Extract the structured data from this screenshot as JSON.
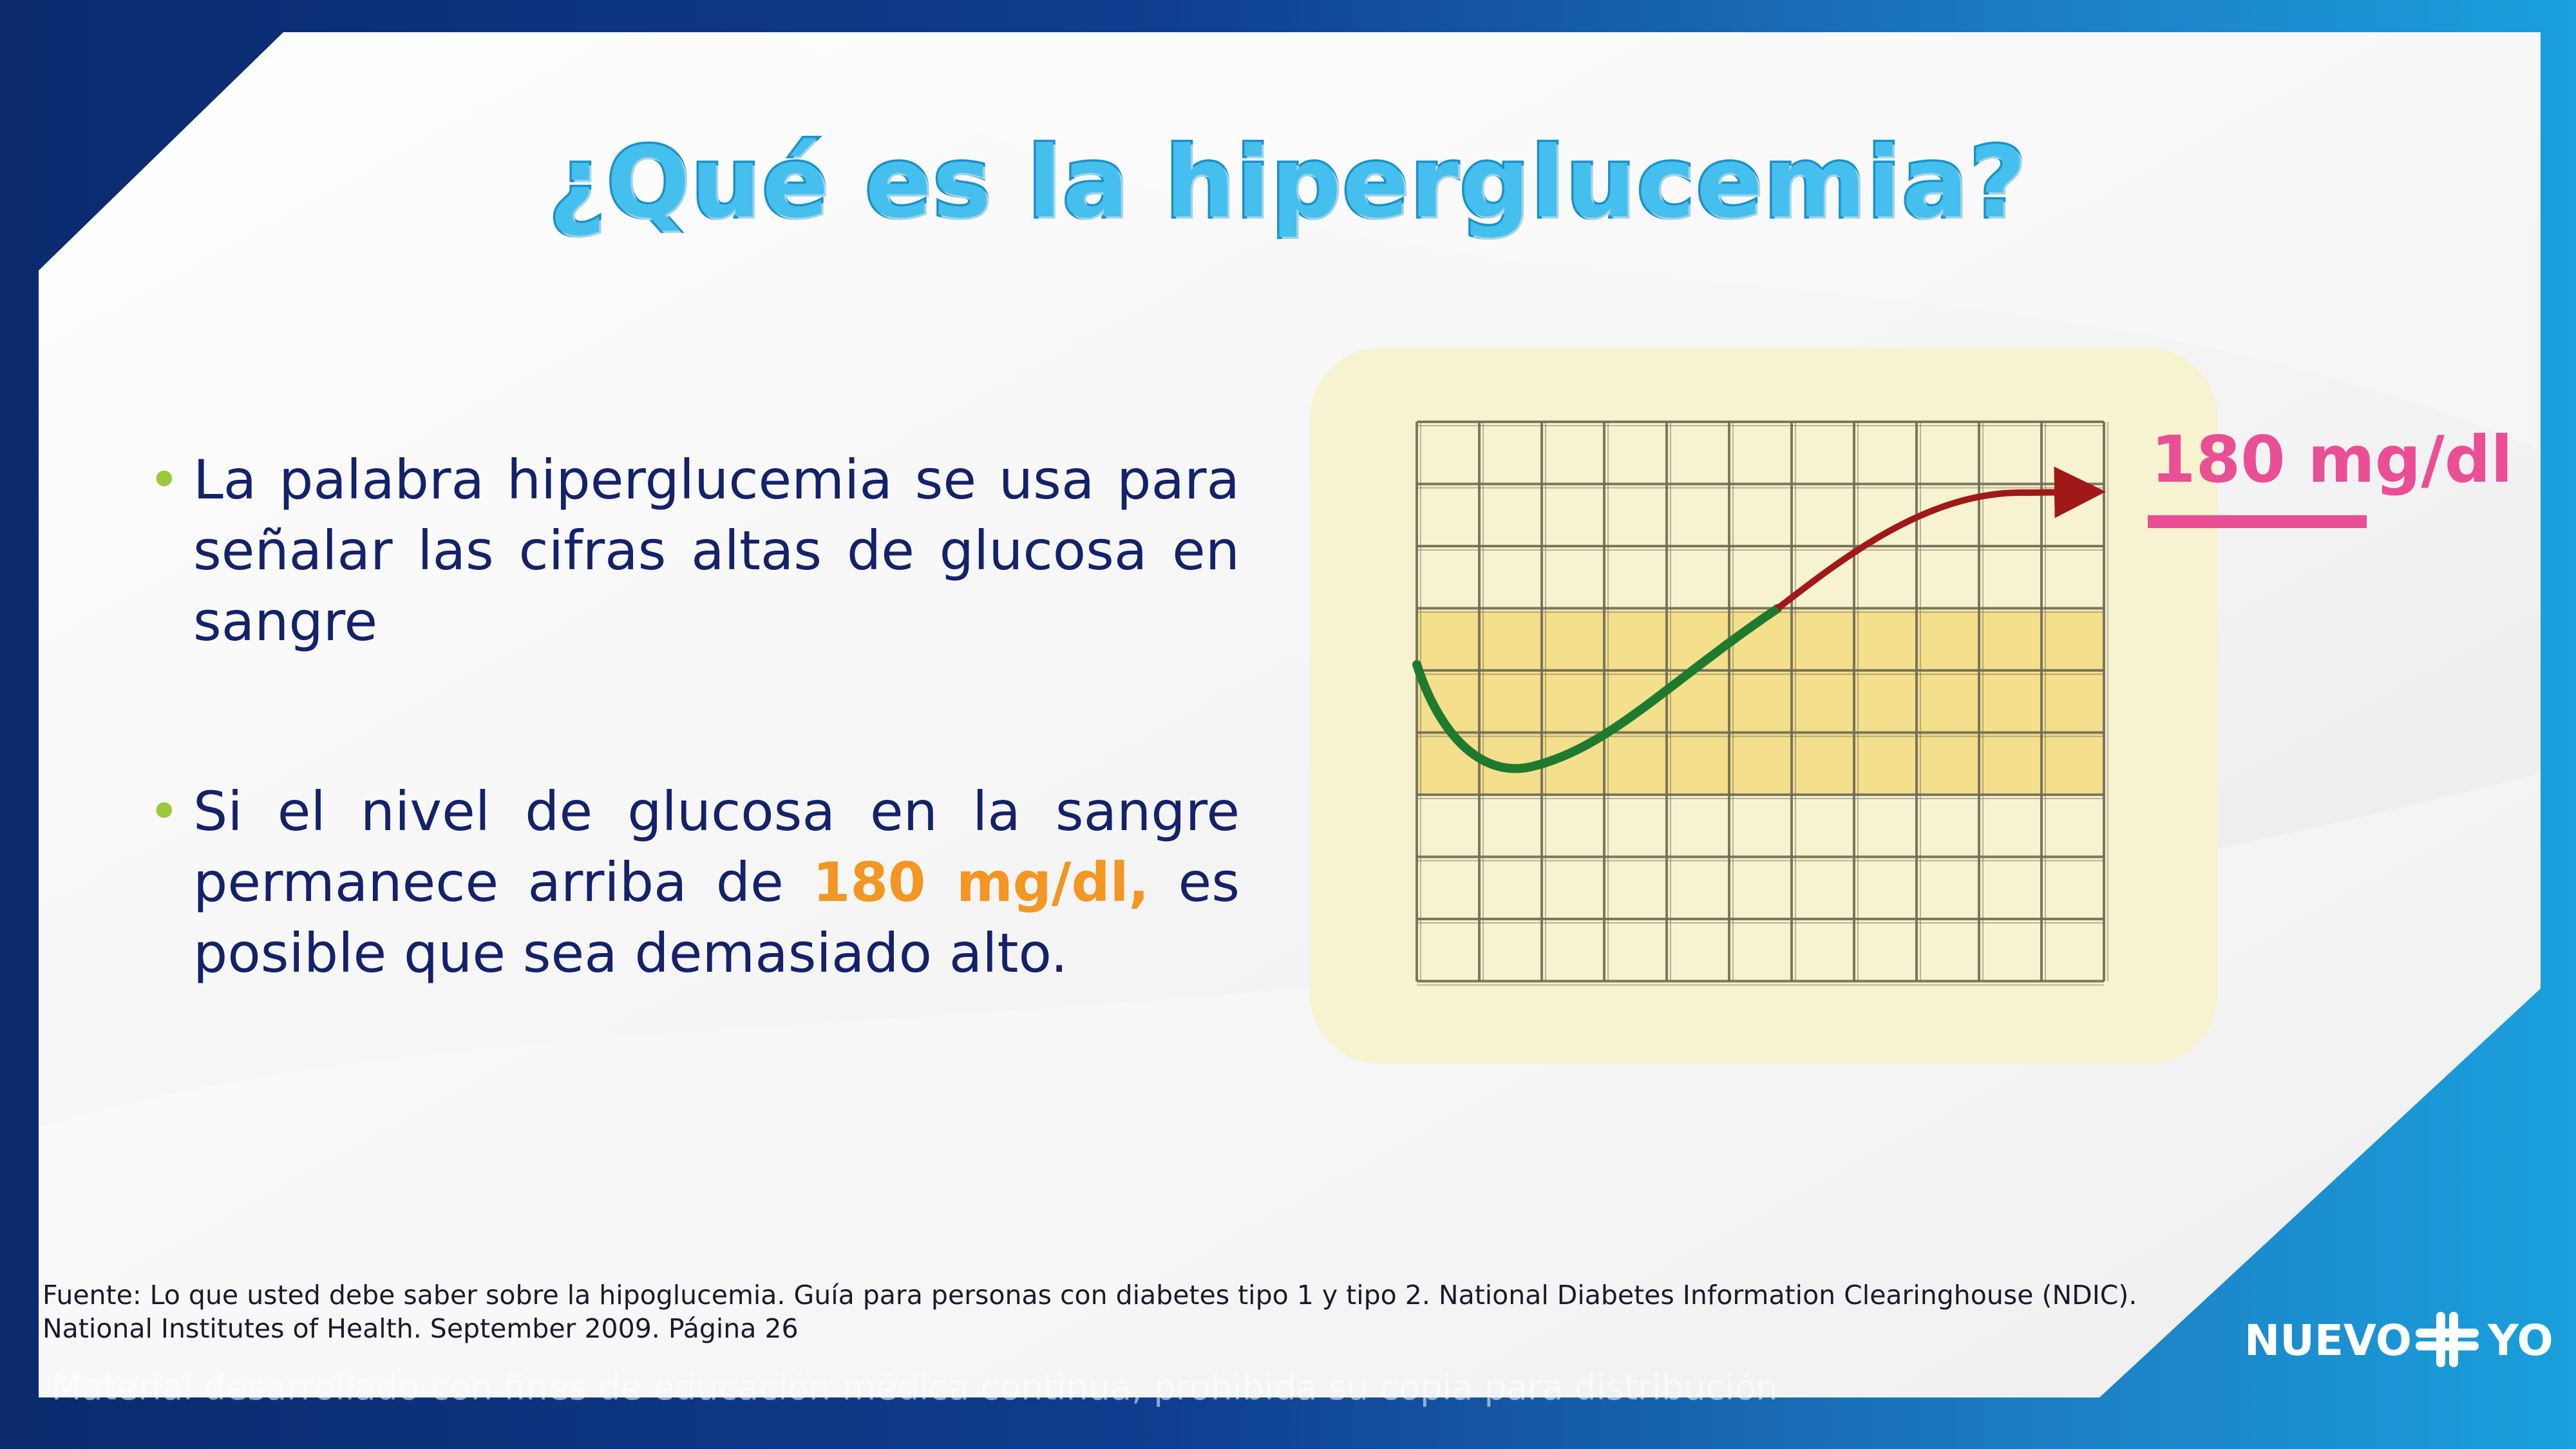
{
  "slide": {
    "title": "¿Qué es la hiperglucemia?",
    "bullets": [
      {
        "text": "La palabra hiperglucemia se usa para señalar las cifras altas de glucosa en sangre"
      },
      {
        "before": "Si el nivel de glucosa en la sangre permanece arriba de ",
        "highlight": "180 mg/dl,",
        "after": " es posible que sea demasiado alto."
      }
    ],
    "annotation": {
      "label": "180 mg/dl"
    },
    "footnote": "Fuente: Lo que usted debe saber sobre la hipoglucemia. Guía para personas con diabetes tipo 1 y tipo 2. National Diabetes Information Clearinghouse (NDIC). National Institutes of Health. September 2009. Página 26",
    "disclaimer": "Material desarrollado con fines de educación médica continua, prohibida su copia para distribución",
    "logo": {
      "left": "NUEVO",
      "right": "YO",
      "mark": "cross-logo-icon"
    }
  },
  "colors": {
    "title": "#45bfee",
    "body_text": "#14216b",
    "highlight": "#f39622",
    "annotation": "#ea4f95",
    "bullet": "#9cc93b",
    "curve_normal": "#1e7a2e",
    "curve_high": "#a01818",
    "chart_bg": "#f7f2cf",
    "target_band": "#f3df8c"
  }
}
